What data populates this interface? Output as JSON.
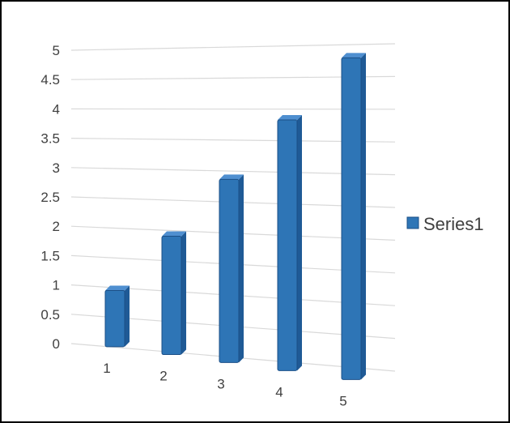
{
  "chart_data": {
    "type": "bar",
    "categories": [
      "1",
      "2",
      "3",
      "4",
      "5"
    ],
    "series": [
      {
        "name": "Series1",
        "values": [
          1,
          2,
          3,
          4,
          5
        ]
      }
    ],
    "ylim": [
      0,
      5
    ],
    "y_ticks": [
      "0",
      "0.5",
      "1",
      "1.5",
      "2",
      "2.5",
      "3",
      "3.5",
      "4",
      "4.5",
      "5"
    ],
    "grid": true,
    "legend_position": "right",
    "colors": {
      "bar_front": "#2e75b6",
      "bar_side": "#1f5a96",
      "bar_top": "#4f8fd0",
      "bar_edge": "#1b4f87",
      "gridline": "#d9d9d9",
      "text": "#404040"
    }
  }
}
